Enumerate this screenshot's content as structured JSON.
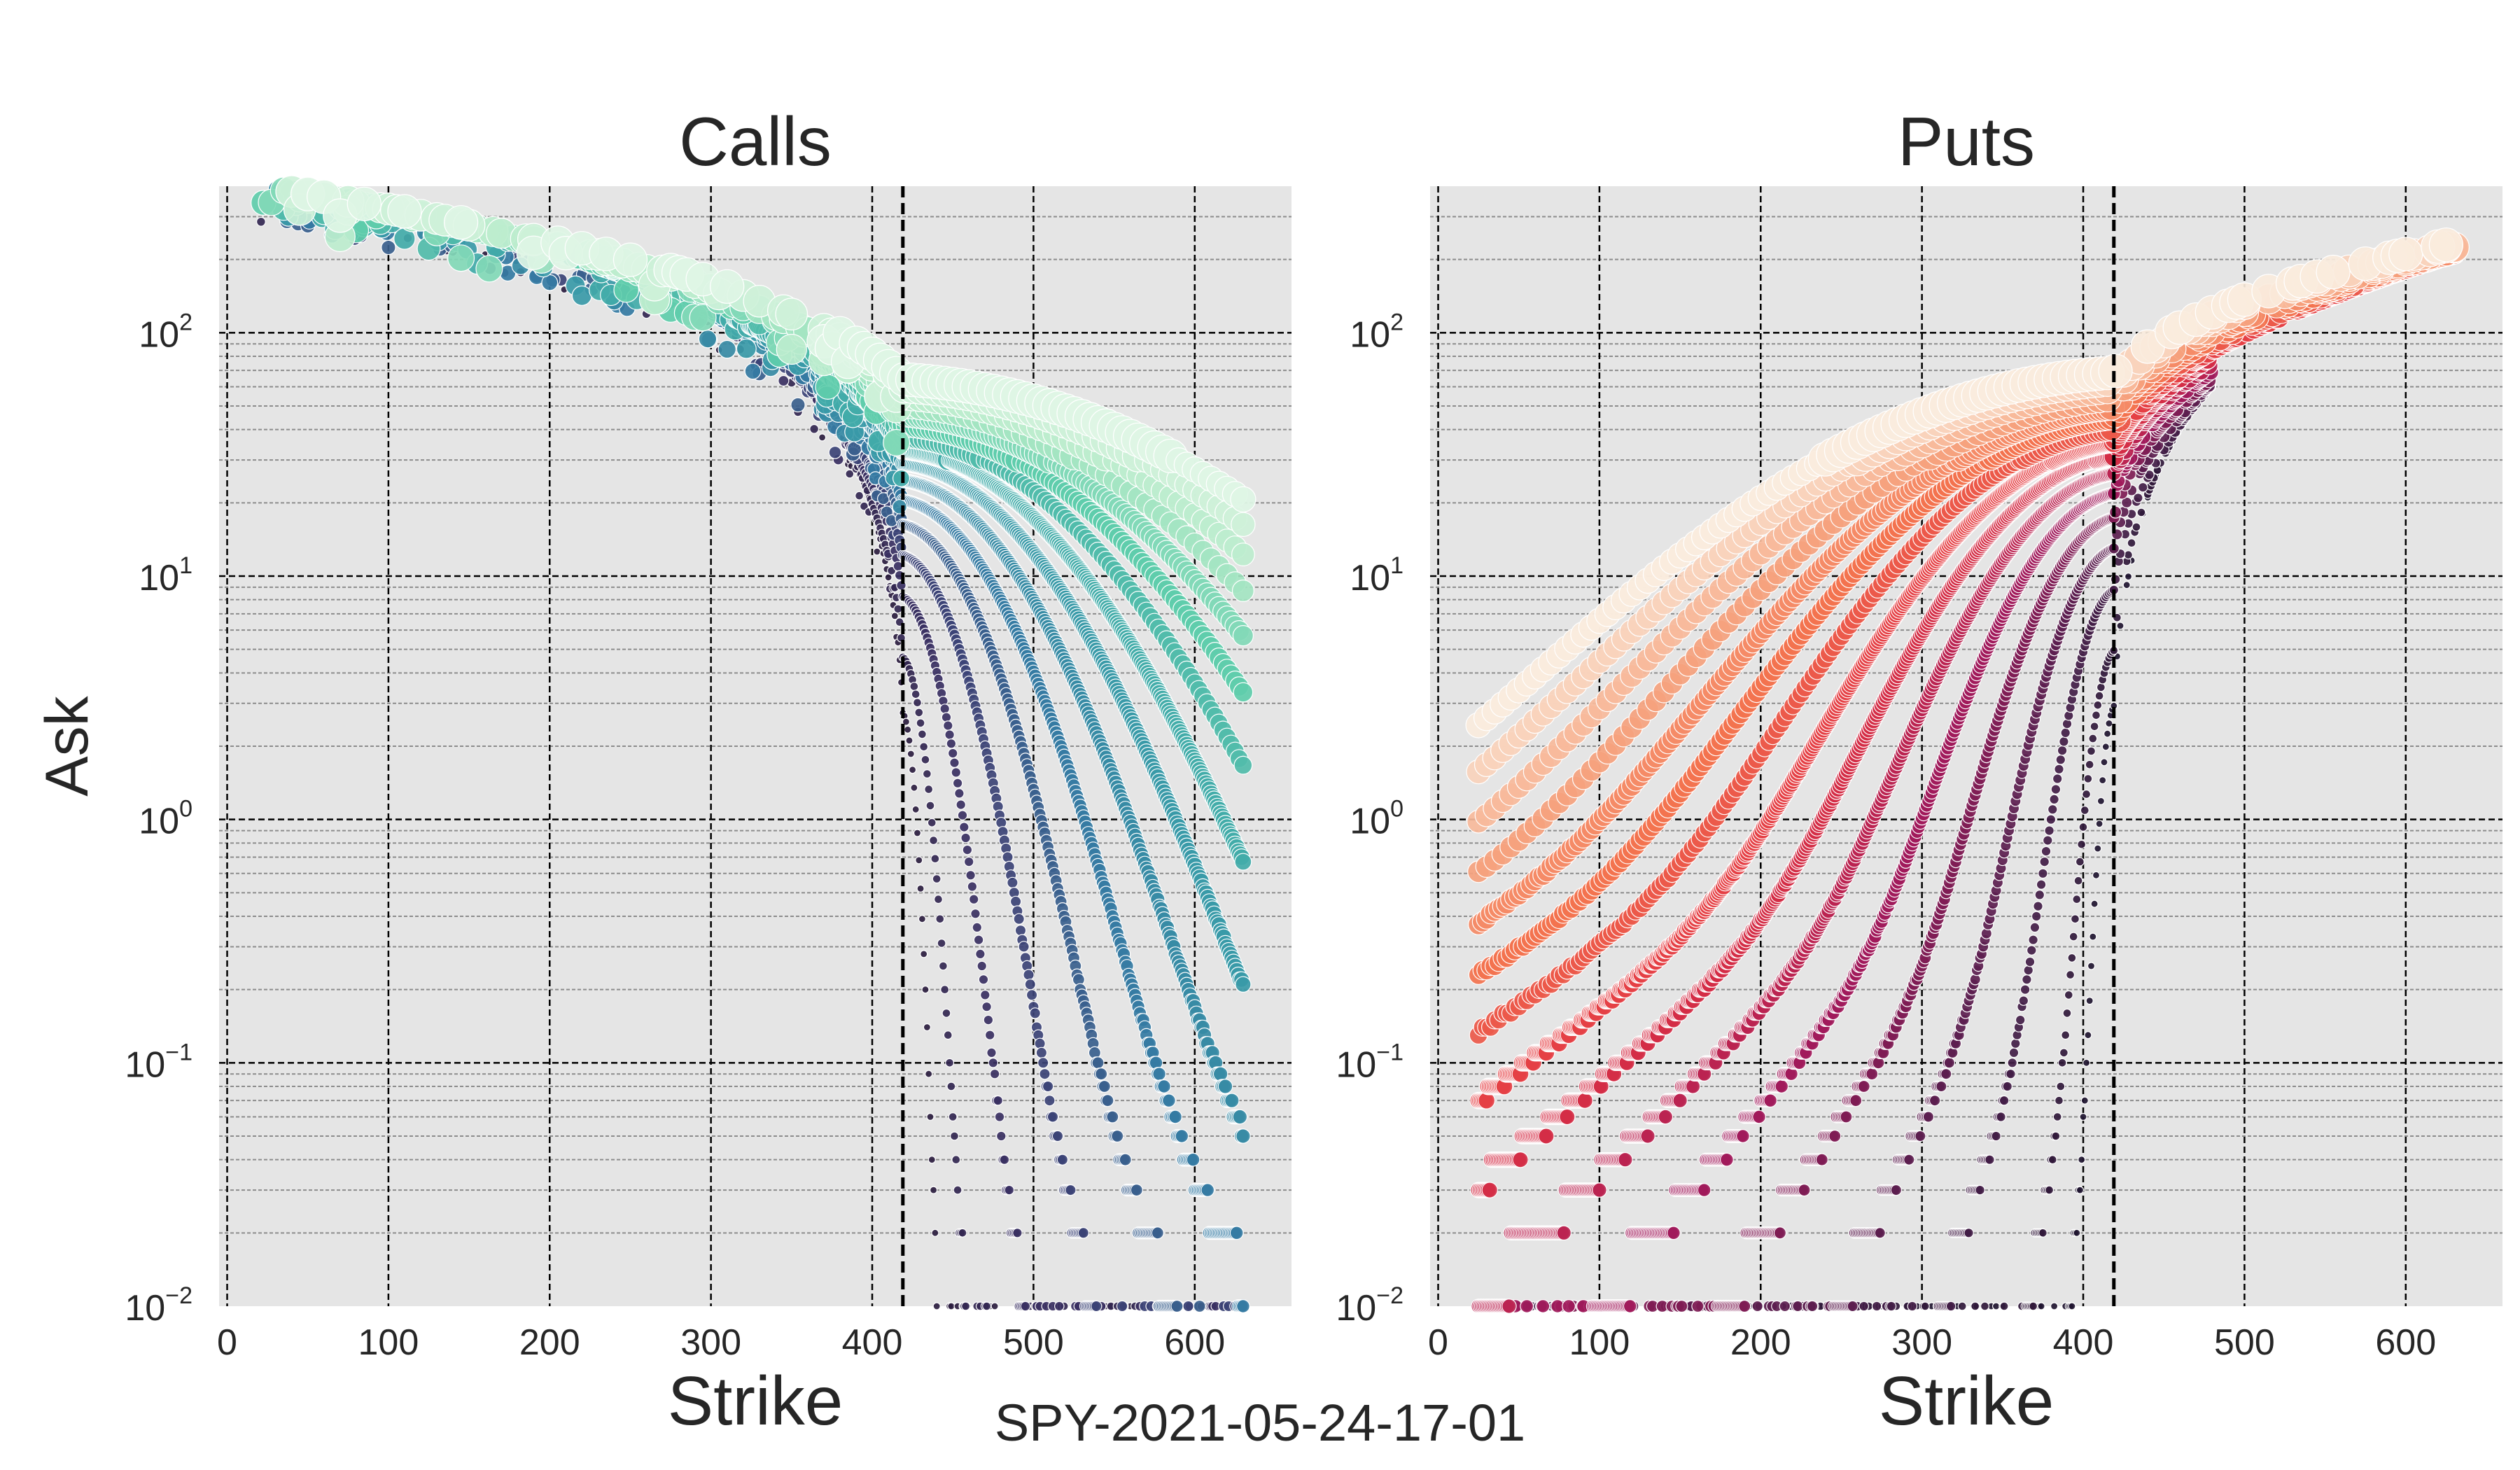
{
  "suptitle": "SPY-2021-05-24-17-01",
  "colors": {
    "plot_background": "#e5e5e5",
    "major_grid": "#000000",
    "minor_grid": "#8c8c8c",
    "spot_line": "#000000",
    "calls_palette": [
      "#2b1d3f",
      "#3e356b",
      "#357ba3",
      "#3aa2a9",
      "#60cdab",
      "#b5ebc8",
      "#def5e5"
    ],
    "puts_palette": [
      "#1f1530",
      "#4b1f4c",
      "#a11a5b",
      "#e13342",
      "#f3734f",
      "#f6ae8a",
      "#faebdd"
    ]
  },
  "chart_data": [
    {
      "type": "scatter",
      "title": "Calls",
      "xlabel": "Strike",
      "ylabel": "Ask",
      "xlim": [
        -5,
        660
      ],
      "ylim": [
        0.01,
        400
      ],
      "yscale": "log",
      "xticks": [
        "0",
        "100",
        "200",
        "300",
        "400",
        "500",
        "600"
      ],
      "yticks": [
        {
          "base": "10",
          "exp": "2"
        },
        {
          "base": "10",
          "exp": "1"
        },
        {
          "base": "10",
          "exp": "0"
        },
        {
          "base": "10",
          "exp": "−1"
        },
        {
          "base": "10",
          "exp": "−2"
        }
      ],
      "grid": true,
      "spot_line_x": 419,
      "series_note": "one series per expiry; colour runs from near expiry (dark) to far expiry (light)",
      "expiries": 16,
      "strike_range": [
        20,
        630
      ],
      "ask_range": [
        0.01,
        380
      ]
    },
    {
      "type": "scatter",
      "title": "Puts",
      "xlabel": "Strike",
      "ylabel": "",
      "xlim": [
        -5,
        660
      ],
      "ylim": [
        0.01,
        400
      ],
      "yscale": "log",
      "xticks": [
        "0",
        "100",
        "200",
        "300",
        "400",
        "500",
        "600"
      ],
      "yticks": [
        {
          "base": "10",
          "exp": "2"
        },
        {
          "base": "10",
          "exp": "1"
        },
        {
          "base": "10",
          "exp": "0"
        },
        {
          "base": "10",
          "exp": "−1"
        },
        {
          "base": "10",
          "exp": "−2"
        }
      ],
      "grid": true,
      "spot_line_x": 419,
      "series_note": "one series per expiry; colour runs from near expiry (dark) to far expiry (light)",
      "expiries": 16,
      "strike_range": [
        25,
        630
      ],
      "ask_range": [
        0.01,
        220
      ]
    }
  ]
}
